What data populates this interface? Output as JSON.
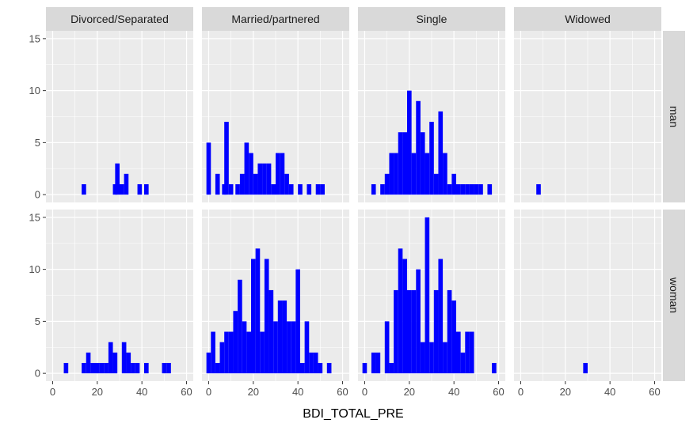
{
  "chart_data": {
    "type": "bar",
    "subtype": "histogram-facet-grid",
    "xlabel": "BDI_TOTAL_PRE",
    "ylabel": "",
    "bin_width": 2,
    "xlim": [
      -3,
      63
    ],
    "ylim": [
      -0.75,
      15.75
    ],
    "x_ticks": [
      0,
      20,
      40,
      60
    ],
    "y_ticks": [
      0,
      5,
      10,
      15
    ],
    "grid": true,
    "bar_color": "#0000ff",
    "panel_background": "#ebebeb",
    "strip_background": "#d9d9d9",
    "columns": [
      "Divorced/Separated",
      "Married/partnered",
      "Single",
      "Widowed"
    ],
    "rows": [
      "man",
      "woman"
    ],
    "panels": [
      {
        "row": "man",
        "column": "Divorced/Separated",
        "bins": [
          [
            14,
            1
          ],
          [
            28,
            1
          ],
          [
            29,
            3
          ],
          [
            31,
            1
          ],
          [
            33,
            2
          ],
          [
            39,
            1
          ],
          [
            42,
            1
          ]
        ]
      },
      {
        "row": "man",
        "column": "Married/partnered",
        "bins": [
          [
            0,
            5
          ],
          [
            4,
            2
          ],
          [
            7,
            1
          ],
          [
            8,
            7
          ],
          [
            10,
            1
          ],
          [
            13,
            1
          ],
          [
            15,
            2
          ],
          [
            17,
            5
          ],
          [
            19,
            4
          ],
          [
            21,
            2
          ],
          [
            23,
            3
          ],
          [
            25,
            3
          ],
          [
            27,
            3
          ],
          [
            29,
            1
          ],
          [
            31,
            4
          ],
          [
            33,
            4
          ],
          [
            35,
            2
          ],
          [
            37,
            1
          ],
          [
            41,
            1
          ],
          [
            45,
            1
          ],
          [
            49,
            1
          ],
          [
            51,
            1
          ]
        ]
      },
      {
        "row": "man",
        "column": "Single",
        "bins": [
          [
            4,
            1
          ],
          [
            8,
            1
          ],
          [
            10,
            2
          ],
          [
            12,
            4
          ],
          [
            14,
            4
          ],
          [
            16,
            6
          ],
          [
            18,
            6
          ],
          [
            20,
            10
          ],
          [
            22,
            4
          ],
          [
            24,
            9
          ],
          [
            26,
            6
          ],
          [
            28,
            4
          ],
          [
            30,
            7
          ],
          [
            32,
            2
          ],
          [
            34,
            8
          ],
          [
            36,
            4
          ],
          [
            38,
            1
          ],
          [
            40,
            2
          ],
          [
            42,
            1
          ],
          [
            44,
            1
          ],
          [
            46,
            1
          ],
          [
            48,
            1
          ],
          [
            50,
            1
          ],
          [
            52,
            1
          ],
          [
            56,
            1
          ]
        ]
      },
      {
        "row": "man",
        "column": "Widowed",
        "bins": [
          [
            8,
            1
          ]
        ]
      },
      {
        "row": "woman",
        "column": "Divorced/Separated",
        "bins": [
          [
            6,
            1
          ],
          [
            14,
            1
          ],
          [
            16,
            2
          ],
          [
            18,
            1
          ],
          [
            20,
            1
          ],
          [
            22,
            1
          ],
          [
            24,
            1
          ],
          [
            26,
            3
          ],
          [
            28,
            2
          ],
          [
            32,
            3
          ],
          [
            34,
            2
          ],
          [
            36,
            1
          ],
          [
            38,
            1
          ],
          [
            42,
            1
          ],
          [
            50,
            1
          ],
          [
            52,
            1
          ]
        ]
      },
      {
        "row": "woman",
        "column": "Married/partnered",
        "bins": [
          [
            0,
            2
          ],
          [
            2,
            4
          ],
          [
            4,
            1
          ],
          [
            6,
            3
          ],
          [
            8,
            4
          ],
          [
            10,
            4
          ],
          [
            12,
            6
          ],
          [
            14,
            9
          ],
          [
            16,
            5
          ],
          [
            18,
            4
          ],
          [
            20,
            11
          ],
          [
            22,
            12
          ],
          [
            24,
            4
          ],
          [
            26,
            11
          ],
          [
            28,
            8
          ],
          [
            30,
            5
          ],
          [
            32,
            7
          ],
          [
            34,
            7
          ],
          [
            36,
            5
          ],
          [
            38,
            5
          ],
          [
            40,
            10
          ],
          [
            42,
            1
          ],
          [
            44,
            5
          ],
          [
            46,
            2
          ],
          [
            48,
            2
          ],
          [
            50,
            1
          ],
          [
            54,
            1
          ]
        ]
      },
      {
        "row": "woman",
        "column": "Single",
        "bins": [
          [
            0,
            1
          ],
          [
            4,
            2
          ],
          [
            6,
            2
          ],
          [
            10,
            5
          ],
          [
            12,
            1
          ],
          [
            14,
            8
          ],
          [
            16,
            12
          ],
          [
            18,
            11
          ],
          [
            20,
            8
          ],
          [
            22,
            8
          ],
          [
            24,
            10
          ],
          [
            26,
            3
          ],
          [
            28,
            15
          ],
          [
            30,
            3
          ],
          [
            32,
            8
          ],
          [
            34,
            11
          ],
          [
            36,
            3
          ],
          [
            38,
            8
          ],
          [
            40,
            7
          ],
          [
            42,
            4
          ],
          [
            44,
            2
          ],
          [
            46,
            4
          ],
          [
            48,
            4
          ],
          [
            58,
            1
          ]
        ]
      },
      {
        "row": "woman",
        "column": "Widowed",
        "bins": [
          [
            29,
            1
          ]
        ]
      }
    ]
  }
}
